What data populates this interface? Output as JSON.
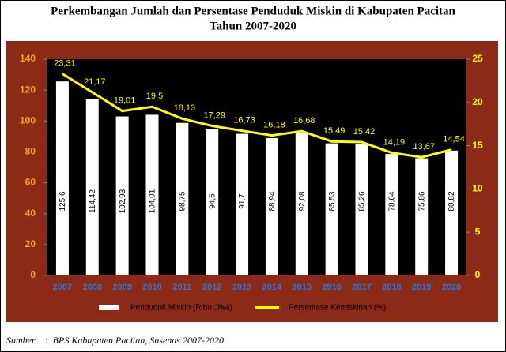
{
  "chart_data": {
    "type": "bar-line",
    "title": "Perkembangan Jumlah dan Persentase Penduduk Miskin di Kabupaten Pacitan",
    "subtitle": "Tahun 2007-2020",
    "categories": [
      "2007",
      "2008",
      "2009",
      "2010",
      "2011",
      "2012",
      "2013",
      "2014",
      "2015",
      "2016",
      "2017",
      "2018",
      "2019",
      "2020"
    ],
    "series": [
      {
        "name": "Penduduk Miskin (Ribu Jiwa)",
        "type": "bar",
        "color": "#ffffff",
        "values": [
          125.6,
          114.42,
          102.93,
          104.01,
          98.75,
          94.5,
          91.7,
          88.94,
          92.08,
          85.53,
          85.26,
          78.64,
          75.86,
          80.82
        ],
        "value_labels": [
          "125,6",
          "114,42",
          "102,93",
          "104,01",
          "98,75",
          "94,5",
          "91,7",
          "88,94",
          "92,08",
          "85,53",
          "85,26",
          "78,64",
          "75,86",
          "80,82"
        ]
      },
      {
        "name": "Persentase Kemiskinan (%)",
        "type": "line",
        "axis": "y2",
        "color": "#ffff00",
        "values": [
          23.31,
          21.17,
          19.01,
          19.5,
          18.13,
          17.29,
          16.73,
          16.18,
          16.68,
          15.49,
          15.42,
          14.19,
          13.67,
          14.54
        ],
        "value_labels": [
          "23,31",
          "21,17",
          "19,01",
          "19,5",
          "18,13",
          "17,29",
          "16,73",
          "16,18",
          "16,68",
          "15,49",
          "15,42",
          "14,19",
          "13,67",
          "14,54"
        ]
      }
    ],
    "ylim": [
      0,
      140
    ],
    "yticks": [
      0,
      20,
      40,
      60,
      80,
      100,
      120,
      140
    ],
    "y2lim": [
      0,
      25
    ],
    "y2ticks": [
      0,
      5,
      10,
      15,
      20,
      25
    ],
    "source": "Sumber    :  BPS Kabupaten Pacitan, Susenas 2007-2020"
  }
}
